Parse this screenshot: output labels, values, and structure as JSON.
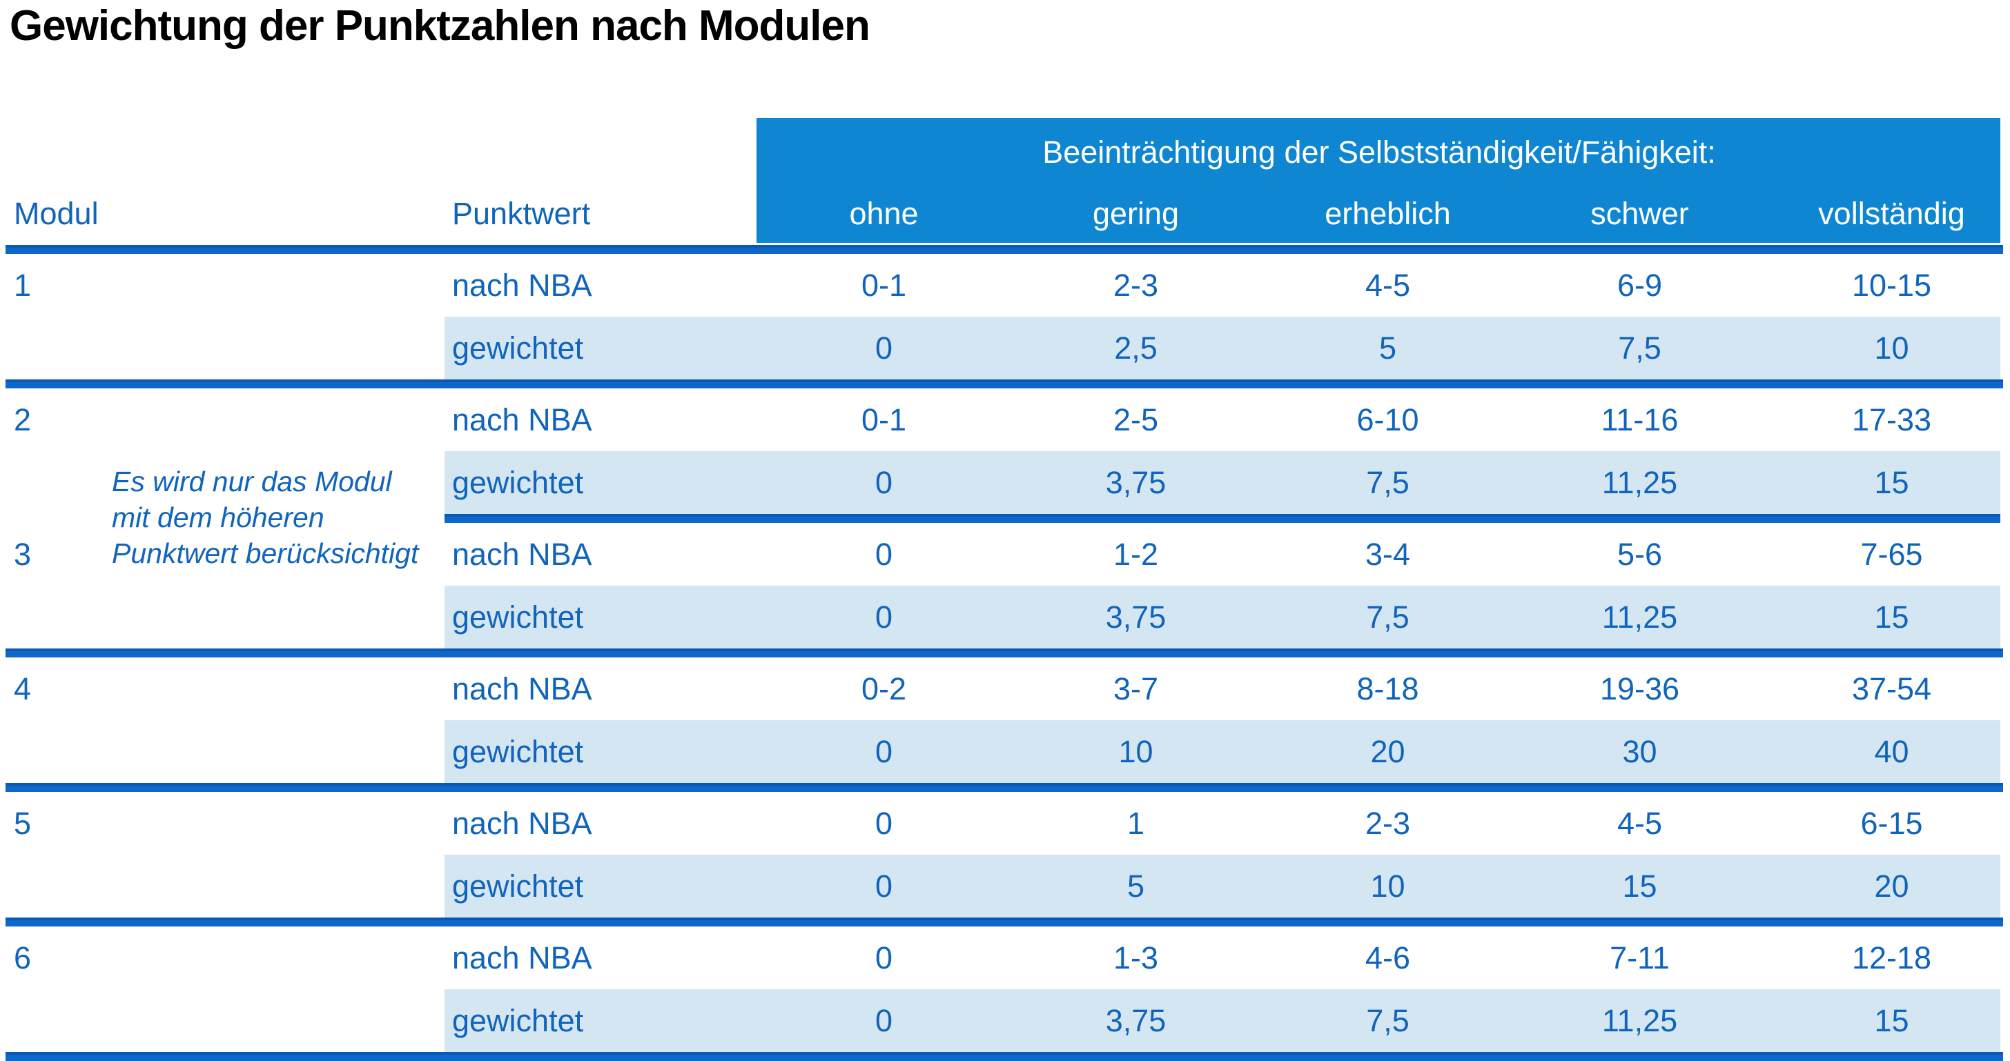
{
  "title": "Gewichtung der Punktzahlen nach Modulen",
  "colors": {
    "header_band": "#0E86D1",
    "separator_line": "#0E68C9",
    "separator_line_dark": "#0A58B6",
    "row_alt_background": "#D5E6F3",
    "text_blue": "#1164BB",
    "header_text": "#FFFFFF",
    "title_color": "#000000"
  },
  "table": {
    "col_module": "Modul",
    "col_pointvalue": "Punktwert",
    "span_header": "Beeinträchtigung der Selbstständigkeit/Fähigkeit:",
    "severity_levels": [
      "ohne",
      "gering",
      "erheblich",
      "schwer",
      "vollständig"
    ],
    "row_labels": {
      "nba": "nach NBA",
      "weighted": "gewichtet"
    },
    "note": "Es wird nur das Modul\nmit dem höheren\nPunktwert berücksichtigt",
    "modules": [
      {
        "id": "1",
        "nba": [
          "0-1",
          "2-3",
          "4-5",
          "6-9",
          "10-15"
        ],
        "weighted": [
          "0",
          "2,5",
          "5",
          "7,5",
          "10"
        ]
      },
      {
        "id": "2",
        "nba": [
          "0-1",
          "2-5",
          "6-10",
          "11-16",
          "17-33"
        ],
        "weighted": [
          "0",
          "3,75",
          "7,5",
          "11,25",
          "15"
        ]
      },
      {
        "id": "3",
        "nba": [
          "0",
          "1-2",
          "3-4",
          "5-6",
          "7-65"
        ],
        "weighted": [
          "0",
          "3,75",
          "7,5",
          "11,25",
          "15"
        ]
      },
      {
        "id": "4",
        "nba": [
          "0-2",
          "3-7",
          "8-18",
          "19-36",
          "37-54"
        ],
        "weighted": [
          "0",
          "10",
          "20",
          "30",
          "40"
        ]
      },
      {
        "id": "5",
        "nba": [
          "0",
          "1",
          "2-3",
          "4-5",
          "6-15"
        ],
        "weighted": [
          "0",
          "5",
          "10",
          "15",
          "20"
        ]
      },
      {
        "id": "6",
        "nba": [
          "0",
          "1-3",
          "4-6",
          "7-11",
          "12-18"
        ],
        "weighted": [
          "0",
          "3,75",
          "7,5",
          "11,25",
          "15"
        ]
      }
    ]
  }
}
